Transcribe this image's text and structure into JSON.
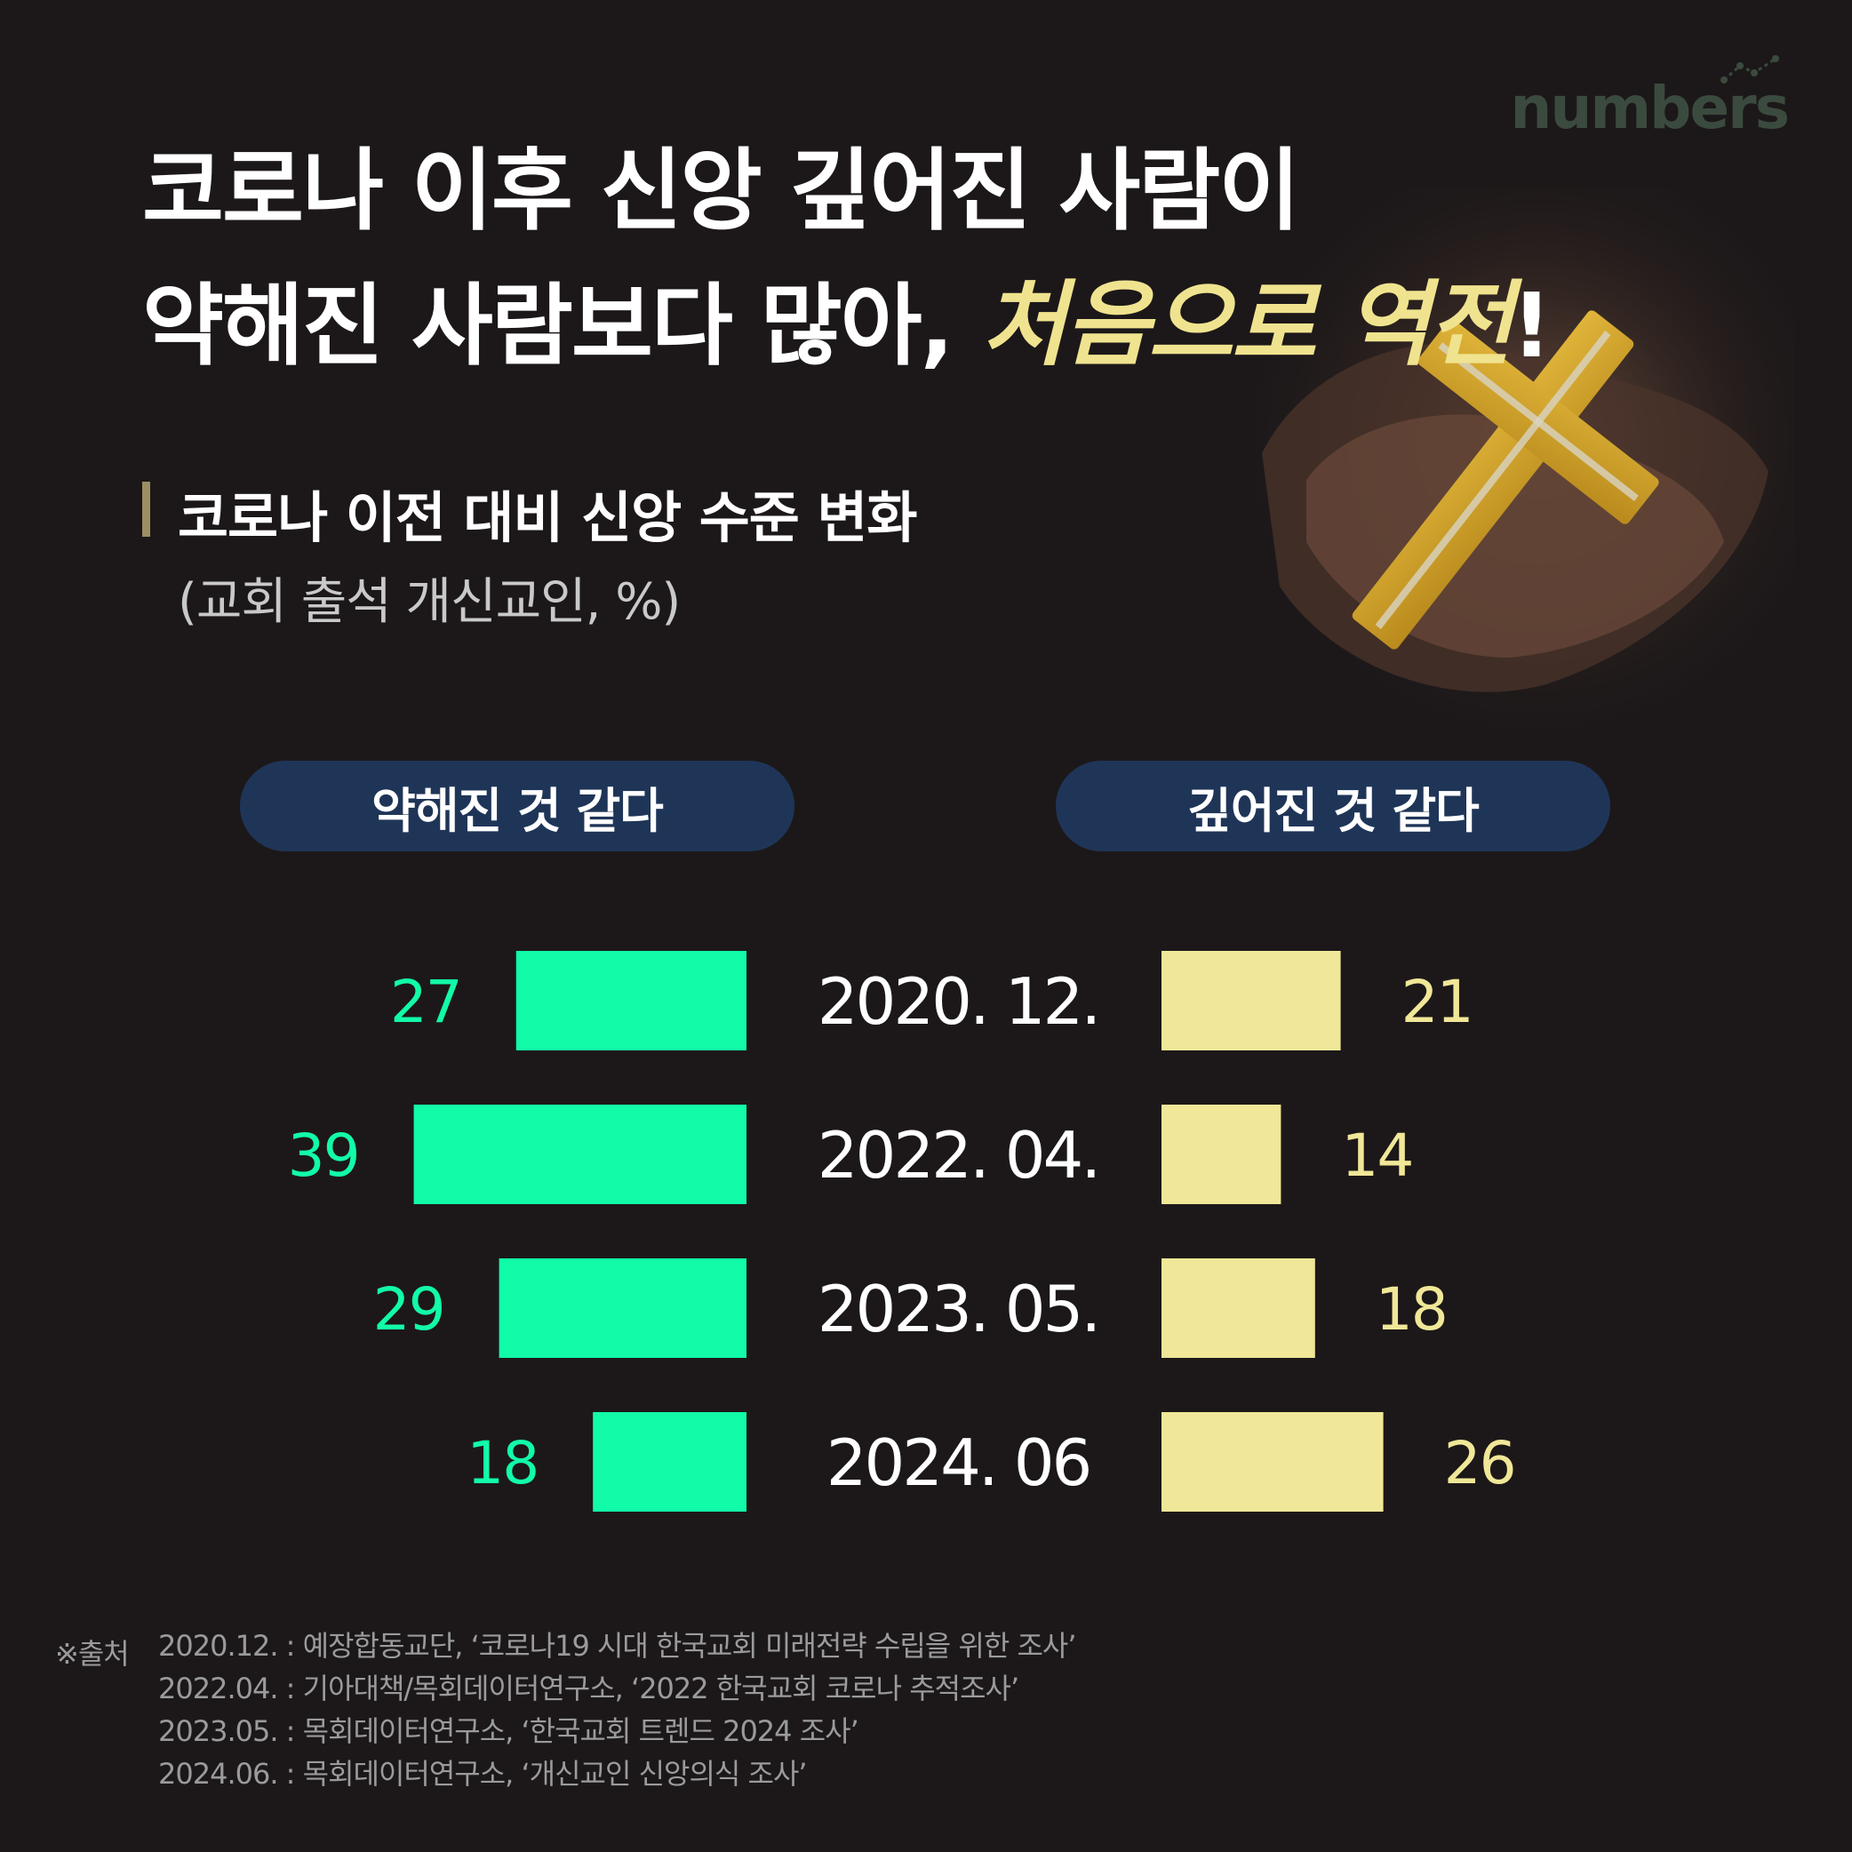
{
  "brand": {
    "logo_text": "numbers"
  },
  "title": {
    "line1": "코로나 이후 신앙 깊어진 사람이",
    "line2_prefix": "약해진 사람보다 많아,",
    "line2_accent": "처음으로 역전",
    "line2_suffix": "!"
  },
  "subtitle": "코로나 이전 대비 신앙 수준 변화",
  "unit_note": "(교회 출석 개신교인, %)",
  "legend": {
    "left": "약해진 것 같다",
    "right": "깊어진 것 같다"
  },
  "colors": {
    "background": "#1c1819",
    "weakened": "#12fba8",
    "deepened": "#f0e798",
    "legend_pill": "#1f3558",
    "title_accent": "#f0e38f"
  },
  "chart_data": {
    "type": "bar",
    "orientation": "horizontal-diverging",
    "categories": [
      "2020. 12.",
      "2022. 04.",
      "2023. 05.",
      "2024. 06"
    ],
    "series": [
      {
        "name": "약해진 것 같다",
        "values": [
          27,
          39,
          29,
          18
        ]
      },
      {
        "name": "깊어진 것 같다",
        "values": [
          21,
          14,
          18,
          26
        ]
      }
    ],
    "unit": "%"
  },
  "sources": {
    "heading": "※출처",
    "lines": [
      "2020.12. : 예장합동교단, ‘코로나19 시대 한국교회 미래전략 수립을 위한 조사’",
      "2022.04. : 기아대책/목회데이터연구소, ‘2022 한국교회 코로나 추적조사’",
      "2023.05. : 목회데이터연구소, ‘한국교회 트렌드 2024 조사’",
      "2024.06. : 목회데이터연구소, ‘개신교인 신앙의식 조사’"
    ]
  }
}
